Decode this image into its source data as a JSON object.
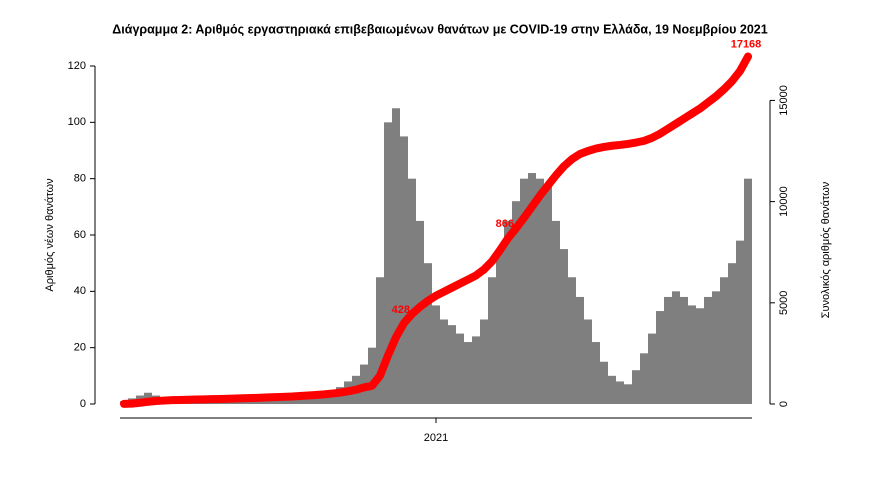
{
  "chart_data": {
    "type": "bar_line",
    "title": "Διάγραμμα 2: Αριθμός εργαστηριακά επιβεβαιωμένων θανάτων με COVID-19 στην Ελλάδα, 19 Νοεμβρίου 2021",
    "ylabel": "Αριθμός νέων θανάτων",
    "y2label": "Συνολικός αριθμός θανάτων",
    "categories": [
      null,
      null,
      null,
      null,
      null,
      null,
      null,
      null,
      null,
      null,
      null,
      null,
      null,
      null,
      null,
      null,
      null,
      null,
      null,
      null,
      null,
      null,
      null,
      null,
      null,
      null,
      null,
      null,
      null,
      null,
      null,
      null,
      null,
      null,
      null,
      null,
      null,
      null,
      null,
      "2021",
      null,
      null,
      null,
      null,
      null,
      null,
      null,
      null,
      null,
      null,
      null,
      null,
      null,
      null,
      null,
      null,
      null,
      null,
      null,
      null,
      null,
      null,
      null,
      null,
      null,
      null,
      null,
      null,
      null,
      null,
      null,
      null,
      null,
      null,
      null,
      null,
      null,
      null,
      null
    ],
    "series": [
      {
        "type": "bar",
        "color": "#7f7f7f",
        "values": [
          1,
          2,
          3,
          4,
          3,
          2,
          2,
          1,
          1,
          1,
          1,
          1,
          1,
          1,
          1,
          2,
          1,
          2,
          2,
          2,
          2,
          2,
          3,
          3,
          3,
          4,
          5,
          6,
          8,
          10,
          14,
          20,
          45,
          100,
          105,
          95,
          80,
          65,
          50,
          35,
          30,
          28,
          25,
          22,
          24,
          30,
          45,
          55,
          65,
          72,
          80,
          82,
          80,
          78,
          65,
          55,
          45,
          38,
          30,
          22,
          15,
          10,
          8,
          7,
          12,
          18,
          25,
          33,
          38,
          40,
          38,
          35,
          34,
          38,
          40,
          45,
          50,
          58,
          80
        ]
      },
      {
        "type": "line",
        "axis": "y2",
        "color": "#ff0000",
        "values": [
          5,
          20,
          60,
          110,
          150,
          170,
          190,
          200,
          210,
          220,
          230,
          240,
          250,
          260,
          270,
          285,
          295,
          310,
          325,
          340,
          355,
          370,
          395,
          420,
          445,
          475,
          515,
          560,
          625,
          705,
          820,
          900,
          1400,
          2400,
          3300,
          4000,
          4450,
          4800,
          5100,
          5350,
          5550,
          5750,
          5950,
          6150,
          6350,
          6650,
          7050,
          7600,
          8190,
          8680,
          9200,
          9750,
          10300,
          10800,
          11300,
          11750,
          12100,
          12350,
          12500,
          12620,
          12700,
          12760,
          12800,
          12850,
          12920,
          13000,
          13150,
          13350,
          13600,
          13850,
          14100,
          14350,
          14600,
          14900,
          15200,
          15550,
          15950,
          16450,
          17168
        ]
      }
    ],
    "annotations": [
      {
        "text": "428",
        "index": 36
      },
      {
        "text": "866",
        "index": 49
      },
      {
        "text": "17168",
        "index": 78
      }
    ],
    "ylim": [
      0,
      120
    ],
    "yticks": [
      0,
      20,
      40,
      60,
      80,
      100,
      120
    ],
    "y2lim": [
      0,
      16700
    ],
    "y2ticks": [
      0,
      5000,
      10000,
      15000
    ]
  }
}
